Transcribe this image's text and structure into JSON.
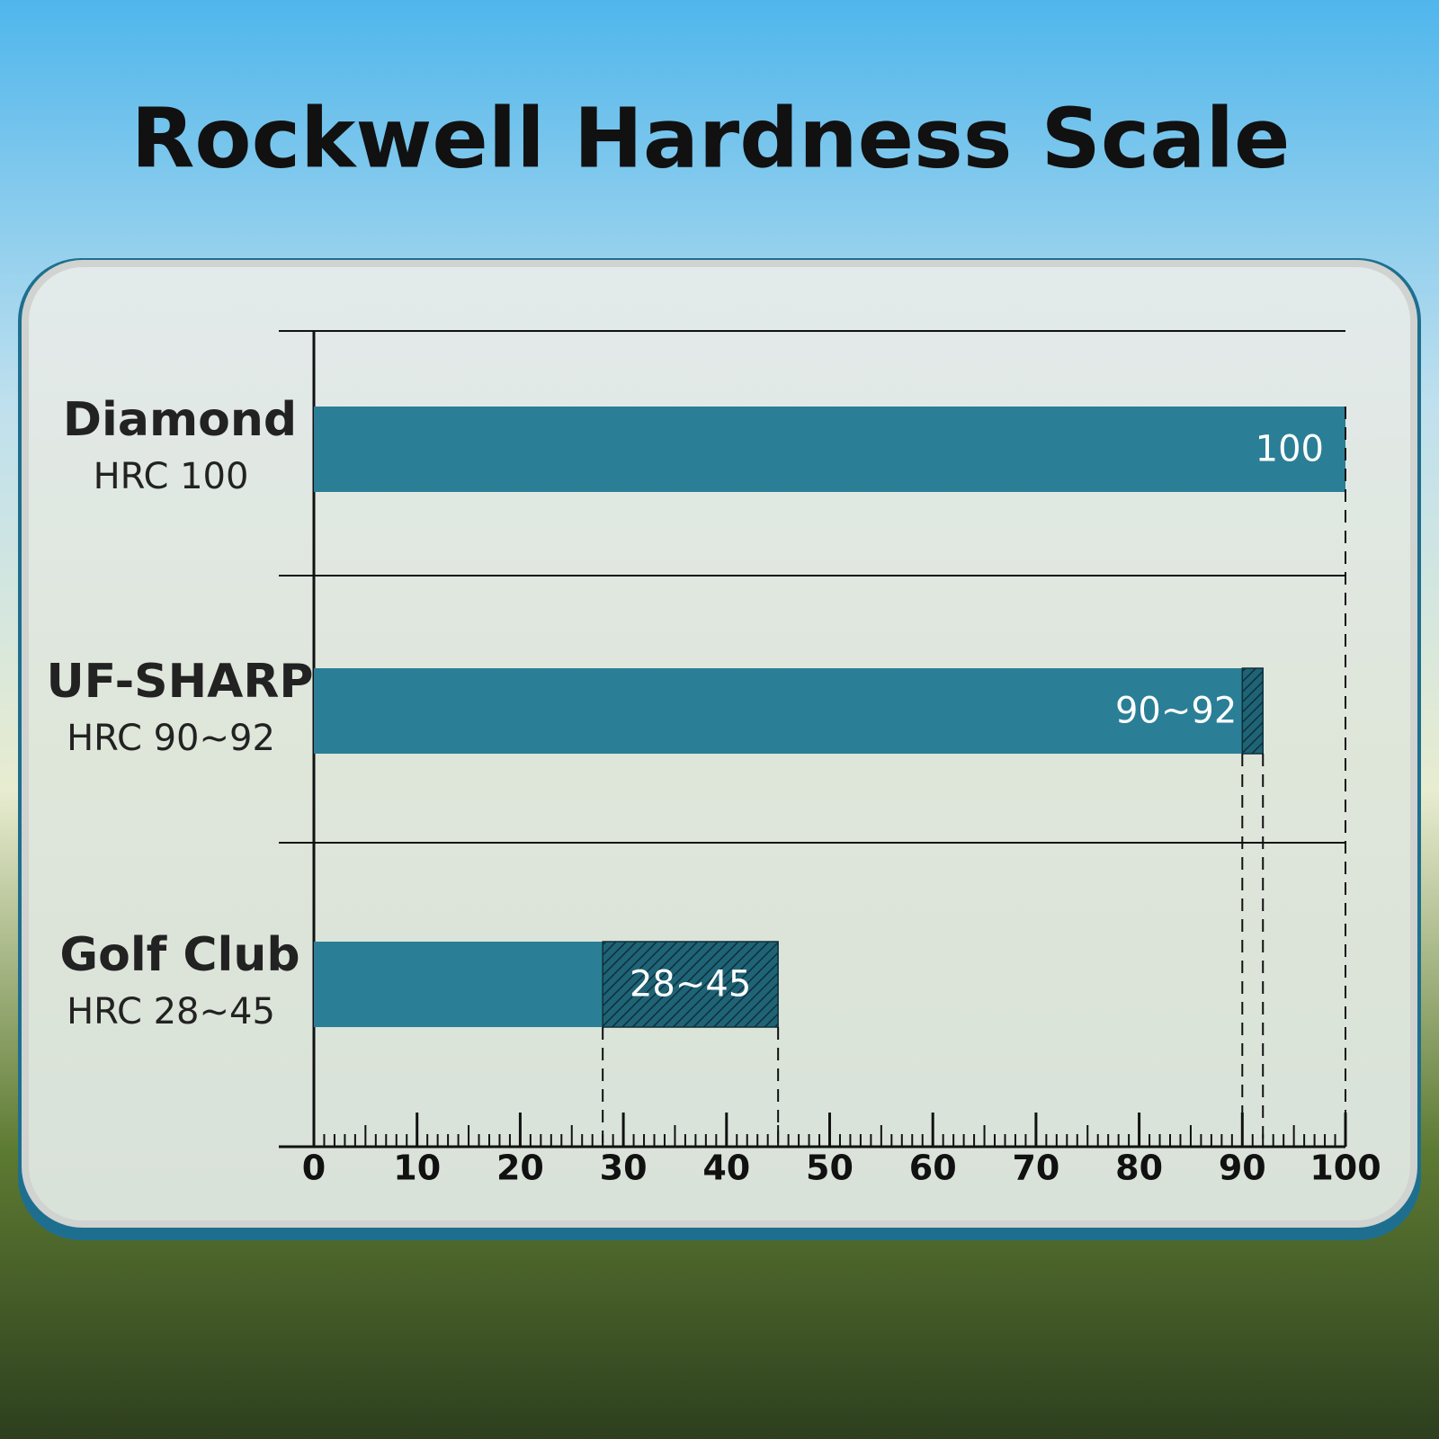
{
  "chart_data": {
    "type": "range-bar",
    "title": "Rockwell Hardness Scale",
    "categories": [
      "Diamond",
      "UF-SHARP",
      "Golf Club"
    ],
    "category_labels": [
      "HRC 100",
      "HRC 90~92",
      "HRC 28~45"
    ],
    "low": [
      100,
      90,
      28
    ],
    "high": [
      100,
      92,
      45
    ],
    "value_labels": [
      "100",
      "90~92",
      "28~45"
    ],
    "color": "#2a7f96",
    "xlim": [
      0,
      100
    ],
    "xticks": [
      0,
      10,
      20,
      30,
      40,
      50,
      60,
      70,
      80,
      90,
      100
    ],
    "minor_tick_step": 1
  }
}
